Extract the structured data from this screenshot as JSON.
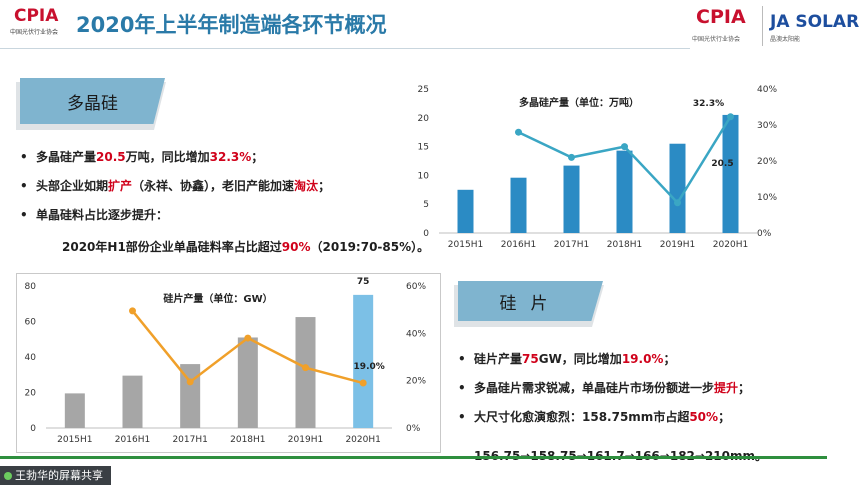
{
  "header": {
    "title": "2020年上半年制造端各环节概况",
    "logo_left": "CPIA",
    "logo_left_sub": "中国光伏行业协会",
    "logo_right1": "CPIA",
    "logo_right1_sub": "中国光伏行业协会",
    "logo_right2": "JA SOLAR",
    "logo_right2_sub": "晶澳太阳能"
  },
  "section1": {
    "tag": "多晶硅",
    "bullets": [
      {
        "parts": [
          {
            "text": "多晶硅产量",
            "red": false
          },
          {
            "text": "20.5",
            "red": true
          },
          {
            "text": "万吨，同比增加",
            "red": false
          },
          {
            "text": "32.3%",
            "red": true
          },
          {
            "text": "；",
            "red": false
          }
        ]
      },
      {
        "parts": [
          {
            "text": "头部企业如期",
            "red": false
          },
          {
            "text": "扩产",
            "red": true
          },
          {
            "text": "（永祥、协鑫），老旧产能加速",
            "red": false
          },
          {
            "text": "淘汰",
            "red": true
          },
          {
            "text": "；",
            "red": false
          }
        ]
      },
      {
        "parts": [
          {
            "text": "单晶硅料占比逐步提升：",
            "red": false
          }
        ]
      }
    ],
    "sub_line": [
      {
        "text": "2020年H1部份企业单晶硅料率占比超过",
        "red": false
      },
      {
        "text": "90%",
        "red": true
      },
      {
        "text": "（2019:70-85%）。",
        "red": false
      }
    ]
  },
  "section2": {
    "tag": "硅片",
    "bullets": [
      {
        "parts": [
          {
            "text": "硅片产量",
            "red": false
          },
          {
            "text": "75",
            "red": true
          },
          {
            "text": "GW，同比增加",
            "red": false
          },
          {
            "text": "19.0%",
            "red": true
          },
          {
            "text": "；",
            "red": false
          }
        ]
      },
      {
        "parts": [
          {
            "text": "多晶硅片需求锐减，单晶硅片市场份额进一步",
            "red": false
          },
          {
            "text": "提升",
            "red": true
          },
          {
            "text": "；",
            "red": false
          }
        ]
      },
      {
        "parts": [
          {
            "text": "大尺寸化愈演愈烈：158.75mm市占超",
            "red": false
          },
          {
            "text": "50%",
            "red": true
          },
          {
            "text": "；",
            "red": false
          }
        ]
      }
    ],
    "sub_line": [
      {
        "text": "156.75→158.75→161.7→166→182→210mm。",
        "red": false
      }
    ]
  },
  "caption": "王勃华的屏幕共享",
  "colors": {
    "accent": "#2a7aa8",
    "tag": "#7fb4cf",
    "red": "#d0021b",
    "bar_blue": "#2b8bc4",
    "line_teal": "#3aa6c4",
    "bar_gray": "#a6a6a6",
    "bar_light_blue": "#7cc0e6",
    "line_orange": "#f0a02a"
  },
  "chart_data": [
    {
      "type": "bar",
      "title": "多晶硅产量（单位：万吨）",
      "categories": [
        "2015H1",
        "2016H1",
        "2017H1",
        "2018H1",
        "2019H1",
        "2020H1"
      ],
      "series": [
        {
          "values": [
            7.5,
            9.6,
            11.7,
            14.3,
            15.5,
            20.5
          ]
        },
        {
          "axis": "right",
          "values": [
            null,
            28.0,
            21.0,
            24.0,
            8.4,
            32.3
          ]
        }
      ],
      "ylim": [
        0,
        25
      ],
      "y2lim": [
        0,
        40
      ],
      "yticks": [
        "0",
        "5",
        "10",
        "15",
        "20",
        "25"
      ],
      "y2ticks": [
        "0%",
        "10%",
        "20%",
        "30%",
        "40%"
      ],
      "data_labels": {
        "bar": "20.5",
        "line": "32.3%"
      }
    },
    {
      "type": "bar",
      "title": "硅片产量（单位：GW）",
      "categories": [
        "2015H1",
        "2016H1",
        "2017H1",
        "2018H1",
        "2019H1",
        "2020H1"
      ],
      "series": [
        {
          "values": [
            19.5,
            29.5,
            36.0,
            51.0,
            62.5,
            75.0
          ]
        },
        {
          "axis": "right",
          "values": [
            null,
            49.5,
            19.5,
            38.0,
            25.5,
            19.0
          ]
        }
      ],
      "ylim": [
        0,
        80
      ],
      "y2lim": [
        0,
        60
      ],
      "yticks": [
        "0",
        "20",
        "40",
        "60",
        "80"
      ],
      "y2ticks": [
        "0%",
        "20%",
        "40%",
        "60%"
      ],
      "data_labels": {
        "bar": "75",
        "line": "19.0%"
      }
    }
  ]
}
